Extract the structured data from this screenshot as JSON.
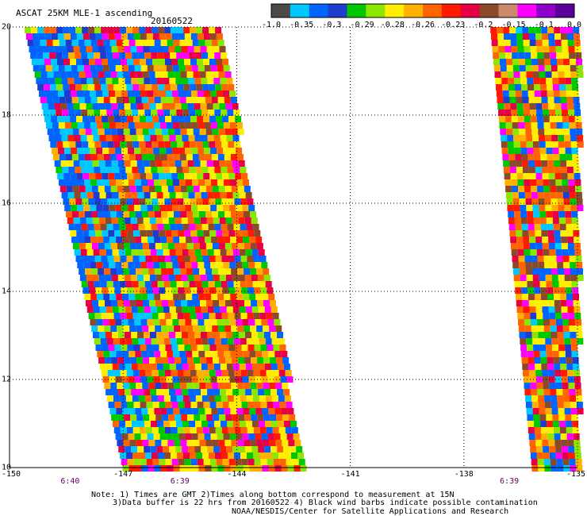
{
  "header": {
    "product": "ASCAT 25KM MLE-1 ascending",
    "date": "20160522"
  },
  "colorbar": {
    "colors": [
      "#4a4a4a",
      "#00c8ff",
      "#0064ff",
      "#1f3ccc",
      "#00c800",
      "#8ce600",
      "#ffee00",
      "#ffb000",
      "#ff6400",
      "#ff1a00",
      "#e60046",
      "#8b4a2a",
      "#c88a6a",
      "#ff00ff",
      "#9000c8",
      "#5a0096"
    ],
    "labels": [
      "-1.0",
      "-0.35",
      "-0.3",
      "-0.29",
      "-0.28",
      "-0.26",
      "-0.23",
      "-0.2",
      "-0.15",
      "-0.1",
      "0.0"
    ]
  },
  "axes": {
    "y_ticks": [
      "20",
      "18",
      "16",
      "14",
      "12",
      "10"
    ],
    "x_ticks": [
      "-150",
      "-147",
      "-144",
      "-141",
      "-138",
      "-135"
    ],
    "x_tick_values": [
      -150,
      -147,
      -144,
      -141,
      -138,
      -135
    ],
    "y_tick_values": [
      20,
      18,
      16,
      14,
      12,
      10
    ],
    "x_range": [
      -150,
      -135
    ],
    "y_range": [
      10,
      20
    ],
    "grid": "dotted"
  },
  "times": [
    {
      "label": "6:40",
      "lon": -148.4
    },
    {
      "label": "6:39",
      "lon": -145.5
    },
    {
      "label": "6:39",
      "lon": -136.8
    }
  ],
  "swaths": [
    {
      "name": "left-swath",
      "lat_top": 20,
      "lat_bottom": 10,
      "west_top": -149.6,
      "west_bottom": -147.0,
      "east_top": -144.5,
      "east_bottom": -142.2
    },
    {
      "name": "right-swath",
      "lat_top": 20,
      "lat_bottom": 10,
      "west_top": -137.3,
      "west_bottom": -136.2,
      "east_top": -135.0,
      "east_bottom": -135.0
    }
  ],
  "notes": {
    "line1": "Note: 1) Times are GMT 2)Times along bottom correspond to measurement at 15N",
    "line2": "3)Data buffer is 22 hrs from 20160522 4) Black wind barbs indicate possible contamination",
    "line3": "NOAA/NESDIS/Center for Satellite Applications and Research"
  }
}
